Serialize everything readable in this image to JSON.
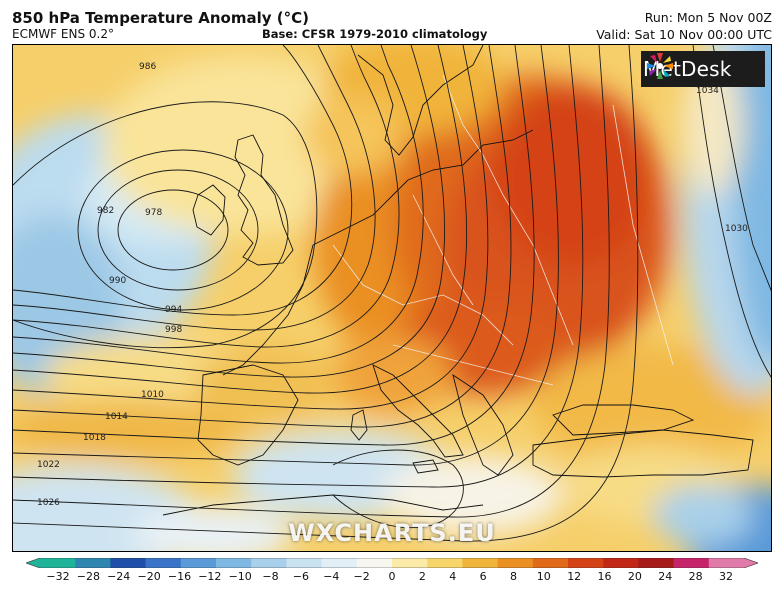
{
  "header": {
    "title": "850 hPa Temperature Anomaly (°C)",
    "model": "ECMWF ENS 0.2°",
    "base": "Base: CFSR 1979-2010 climatology",
    "run": "Run: Mon 5 Nov 00Z",
    "valid": "Valid: Sat 10 Nov 00:00 UTC"
  },
  "logo": {
    "text": "MetDesk"
  },
  "watermark": "WXCHARTS.EU",
  "colorbar": {
    "ticks": [
      "−32",
      "−28",
      "−24",
      "−20",
      "−16",
      "−12",
      "−10",
      "−8",
      "−6",
      "−4",
      "−2",
      "0",
      "2",
      "4",
      "6",
      "8",
      "10",
      "12",
      "16",
      "20",
      "24",
      "28",
      "32"
    ],
    "colors": [
      "#1fb39a",
      "#2e86b0",
      "#1f4fa8",
      "#3a74c8",
      "#5a9ad8",
      "#7fb8e2",
      "#a8d0ea",
      "#c9e2f1",
      "#e3eff6",
      "#f7f7f0",
      "#fbeaa8",
      "#f6d56a",
      "#f1b43b",
      "#ea8f22",
      "#e06a1a",
      "#d44316",
      "#c22716",
      "#a61a1a",
      "#c5246a",
      "#e07aa8"
    ]
  },
  "isobars": {
    "labels": [
      "986",
      "982",
      "978",
      "990",
      "994",
      "998",
      "1010",
      "1014",
      "1018",
      "1022",
      "1026",
      "1030",
      "1034"
    ]
  }
}
